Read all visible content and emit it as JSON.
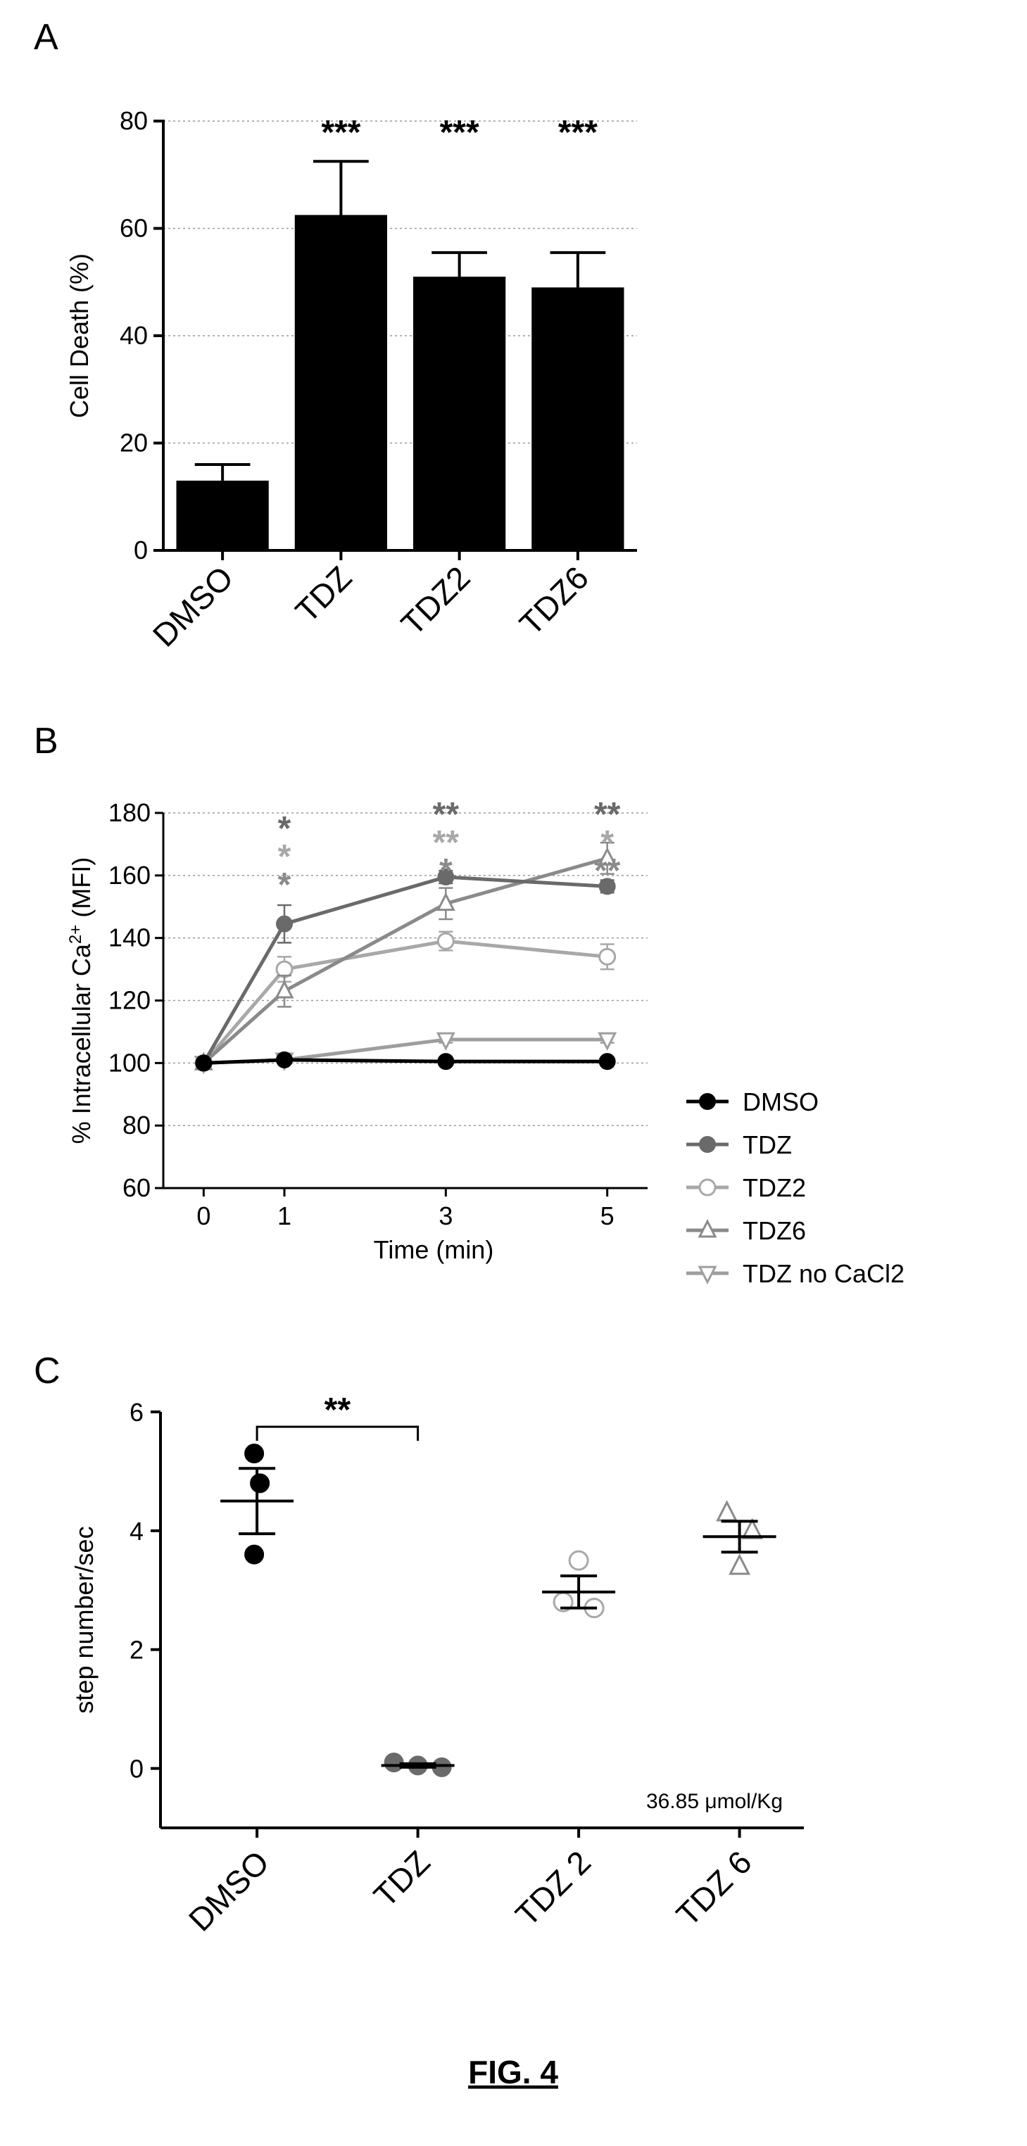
{
  "figure_caption": "FIG. 4",
  "chart_data": [
    {
      "panel": "A",
      "type": "bar",
      "categories": [
        "DMSO",
        "TDZ",
        "TDZ2",
        "TDZ6"
      ],
      "values": [
        13,
        62.5,
        51,
        49
      ],
      "errors": [
        3,
        10,
        4.5,
        6.5
      ],
      "ylabel": "Cell Death (%)",
      "ylim": [
        0,
        80
      ],
      "yticks": [
        0,
        20,
        40,
        60,
        80
      ],
      "grid": true,
      "bar_color": "#000000",
      "annotations": [
        "",
        "***",
        "***",
        "***"
      ]
    },
    {
      "panel": "B",
      "type": "line",
      "xlabel": "Time (min)",
      "ylabel": "% Intracellular Ca",
      "ylabel_sup": "2+",
      "ylabel_suffix": " (MFI)",
      "x": [
        0,
        1,
        3,
        5
      ],
      "xticks": [
        0,
        1,
        3,
        5
      ],
      "xlim": [
        -0.5,
        5.5
      ],
      "ylim": [
        60,
        180
      ],
      "yticks": [
        60,
        80,
        100,
        120,
        140,
        160,
        180
      ],
      "grid": true,
      "legend_position": "right",
      "series": [
        {
          "name": "DMSO",
          "values": [
            100,
            101,
            100.5,
            100.5
          ],
          "errors": [
            0,
            1,
            1,
            1
          ],
          "color": "#000000",
          "marker": "circle-filled"
        },
        {
          "name": "TDZ",
          "values": [
            100,
            144.5,
            159.5,
            156.5
          ],
          "errors": [
            0,
            6,
            2,
            2
          ],
          "color": "#6a6a6a",
          "marker": "circle-filled"
        },
        {
          "name": "TDZ2",
          "values": [
            100,
            130,
            139,
            134
          ],
          "errors": [
            0,
            4,
            3,
            4
          ],
          "color": "#a8a8a8",
          "marker": "circle-open"
        },
        {
          "name": "TDZ6",
          "values": [
            100,
            123,
            151,
            165.5
          ],
          "errors": [
            0,
            5,
            5,
            5
          ],
          "color": "#8a8a8a",
          "marker": "triangle-up"
        },
        {
          "name": "TDZ no CaCl2",
          "values": [
            100,
            101,
            107.5,
            107.5
          ],
          "errors": [
            0,
            1,
            1,
            1
          ],
          "color": "#9e9e9e",
          "marker": "triangle-down"
        }
      ],
      "annotations": [
        {
          "x": 1,
          "lines": [
            {
              "text": "*",
              "color": "#6a6a6a"
            },
            {
              "text": "*",
              "color": "#a8a8a8"
            },
            {
              "text": "*",
              "color": "#8a8a8a"
            }
          ]
        },
        {
          "x": 3,
          "lines": [
            {
              "text": "**",
              "color": "#6a6a6a"
            },
            {
              "text": "**",
              "color": "#a8a8a8"
            },
            {
              "text": "*",
              "color": "#8a8a8a"
            }
          ]
        },
        {
          "x": 5,
          "lines": [
            {
              "text": "**",
              "color": "#6a6a6a"
            },
            {
              "text": "*",
              "color": "#a8a8a8"
            },
            {
              "text": "**",
              "color": "#8a8a8a"
            }
          ]
        }
      ]
    },
    {
      "panel": "C",
      "type": "scatter",
      "categories": [
        "DMSO",
        "TDZ",
        "TDZ 2",
        "TDZ 6"
      ],
      "ylabel": "step number/sec",
      "ylim": [
        -1,
        6
      ],
      "yticks": [
        0,
        2,
        4,
        6
      ],
      "groups": [
        {
          "name": "DMSO",
          "points": [
            5.3,
            4.8,
            3.6
          ],
          "mean": 4.5,
          "sem": 0.55,
          "color": "#000000",
          "marker": "circle-filled"
        },
        {
          "name": "TDZ",
          "points": [
            0.1,
            0.05,
            0.02
          ],
          "mean": 0.05,
          "sem": 0.03,
          "color": "#6a6a6a",
          "marker": "circle-filled"
        },
        {
          "name": "TDZ 2",
          "points": [
            3.5,
            2.8,
            2.7
          ],
          "mean": 2.97,
          "sem": 0.27,
          "color": "#a8a8a8",
          "marker": "circle-open"
        },
        {
          "name": "TDZ 6",
          "points": [
            4.3,
            4.0,
            3.4
          ],
          "mean": 3.9,
          "sem": 0.26,
          "color": "#8a8a8a",
          "marker": "triangle-open"
        }
      ],
      "comparison": {
        "from": 0,
        "to": 1,
        "label": "**"
      },
      "note": "36.85 μmol/Kg"
    }
  ]
}
